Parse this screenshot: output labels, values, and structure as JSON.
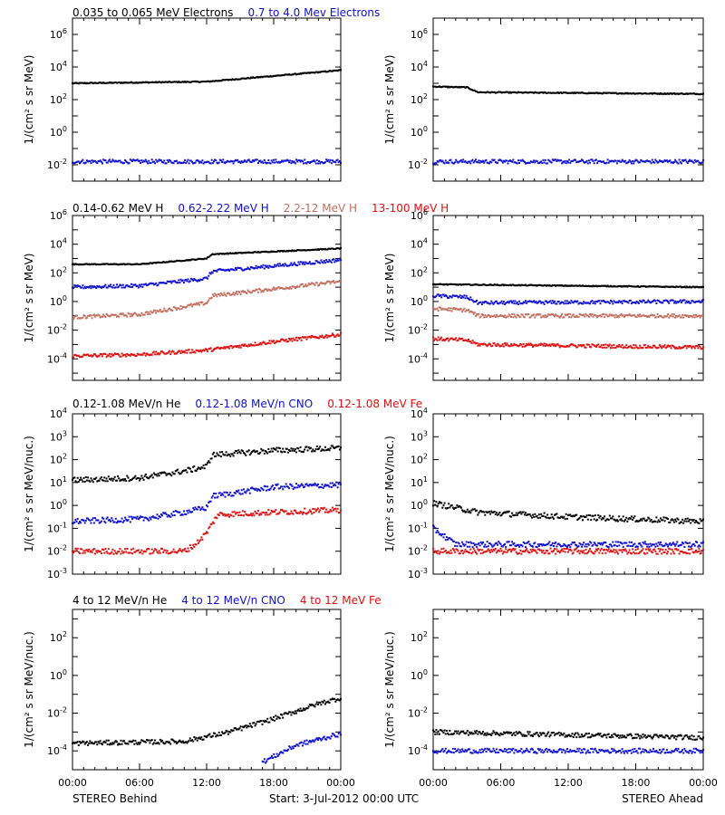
{
  "colors": {
    "black": "#000000",
    "blue": "#1010cc",
    "brown": "#c07060",
    "red": "#dd1010"
  },
  "footer": {
    "left_label": "STEREO Behind",
    "center_label": "Start:  3-Jul-2012 00:00 UTC",
    "right_label": "STEREO Ahead"
  },
  "chart_data": [
    {
      "type": "scatter",
      "row_title": [
        {
          "text": "0.035 to 0.065 MeV Electrons",
          "color": "black"
        },
        {
          "text": "0.7 to 4.0 Mev Electrons",
          "color": "blue"
        }
      ],
      "ylabel": "1/(cm² s sr MeV)",
      "y_scale": "log",
      "ylim_exp": [
        -3,
        7
      ],
      "ytick_exponents": [
        -2,
        0,
        2,
        4,
        6
      ],
      "x_ticks_hours": [
        0,
        6,
        12,
        18,
        24
      ],
      "x_tick_labels": [
        "00:00",
        "06:00",
        "12:00",
        "18:00",
        "00:00"
      ],
      "panels": [
        {
          "spacecraft": "STEREO Behind",
          "series": [
            {
              "color": "black",
              "x": [
                0,
                12,
                24
              ],
              "log10_y": [
                3.0,
                3.1,
                3.8
              ]
            },
            {
              "color": "blue",
              "x": [
                0,
                24
              ],
              "log10_y": [
                -1.8,
                -1.8
              ]
            }
          ]
        },
        {
          "spacecraft": "STEREO Ahead",
          "series": [
            {
              "color": "black",
              "x": [
                0,
                3,
                4,
                24
              ],
              "log10_y": [
                2.8,
                2.75,
                2.45,
                2.35
              ]
            },
            {
              "color": "blue",
              "x": [
                0,
                24
              ],
              "log10_y": [
                -1.8,
                -1.8
              ]
            }
          ]
        }
      ]
    },
    {
      "type": "scatter",
      "row_title": [
        {
          "text": "0.14-0.62 MeV H",
          "color": "black"
        },
        {
          "text": "0.62-2.22 MeV H",
          "color": "blue"
        },
        {
          "text": "2.2-12 MeV H",
          "color": "brown"
        },
        {
          "text": "13-100 MeV H",
          "color": "red"
        }
      ],
      "ylabel": "1/(cm² s sr MeV)",
      "y_scale": "log",
      "ylim_exp": [
        -5.5,
        6
      ],
      "ytick_exponents": [
        -4,
        -2,
        0,
        2,
        4,
        6
      ],
      "x_ticks_hours": [
        0,
        6,
        12,
        18,
        24
      ],
      "x_tick_labels": [
        "00:00",
        "06:00",
        "12:00",
        "18:00",
        "00:00"
      ],
      "panels": [
        {
          "spacecraft": "STEREO Behind",
          "series": [
            {
              "color": "black",
              "x": [
                0,
                6,
                12,
                12.5,
                24
              ],
              "log10_y": [
                2.6,
                2.6,
                3.0,
                3.3,
                3.7
              ]
            },
            {
              "color": "blue",
              "x": [
                0,
                6,
                12,
                12.5,
                24
              ],
              "log10_y": [
                1.0,
                1.1,
                1.6,
                2.1,
                2.9
              ]
            },
            {
              "color": "brown",
              "x": [
                0,
                6,
                12,
                12.5,
                24
              ],
              "log10_y": [
                -1.1,
                -0.9,
                -0.1,
                0.4,
                1.4
              ]
            },
            {
              "color": "red",
              "x": [
                0,
                6,
                12,
                18,
                24
              ],
              "log10_y": [
                -3.8,
                -3.7,
                -3.4,
                -2.8,
                -2.3
              ]
            }
          ]
        },
        {
          "spacecraft": "STEREO Ahead",
          "series": [
            {
              "color": "black",
              "x": [
                0,
                24
              ],
              "log10_y": [
                1.2,
                1.0
              ]
            },
            {
              "color": "blue",
              "x": [
                0,
                3,
                4,
                24
              ],
              "log10_y": [
                0.4,
                0.3,
                -0.1,
                0.0
              ]
            },
            {
              "color": "brown",
              "x": [
                0,
                3,
                4,
                24
              ],
              "log10_y": [
                -0.5,
                -0.6,
                -1.0,
                -1.0
              ]
            },
            {
              "color": "red",
              "x": [
                0,
                3,
                4,
                24
              ],
              "log10_y": [
                -2.6,
                -2.7,
                -3.0,
                -3.2
              ]
            }
          ]
        }
      ]
    },
    {
      "type": "scatter",
      "row_title": [
        {
          "text": "0.12-1.08 MeV/n He",
          "color": "black"
        },
        {
          "text": "0.12-1.08 MeV/n CNO",
          "color": "blue"
        },
        {
          "text": "0.12-1.08 MeV Fe",
          "color": "red"
        }
      ],
      "ylabel": "1/(cm² s sr MeV/nuc.)",
      "y_scale": "log",
      "ylim_exp": [
        -3,
        4
      ],
      "ytick_exponents": [
        -3,
        -2,
        -1,
        0,
        1,
        2,
        3,
        4
      ],
      "x_ticks_hours": [
        0,
        6,
        12,
        18,
        24
      ],
      "x_tick_labels": [
        "00:00",
        "06:00",
        "12:00",
        "18:00",
        "00:00"
      ],
      "panels": [
        {
          "spacecraft": "STEREO Behind",
          "series": [
            {
              "color": "black",
              "x": [
                0,
                6,
                10,
                12,
                12.5,
                18,
                24
              ],
              "log10_y": [
                1.1,
                1.2,
                1.5,
                1.7,
                2.2,
                2.4,
                2.5
              ]
            },
            {
              "color": "blue",
              "x": [
                0,
                6,
                10,
                12,
                12.5,
                18,
                24
              ],
              "log10_y": [
                -0.7,
                -0.6,
                -0.3,
                -0.1,
                0.4,
                0.8,
                0.9
              ]
            },
            {
              "color": "red",
              "x": [
                0,
                10,
                11,
                12,
                13,
                18,
                24
              ],
              "log10_y": [
                -2.0,
                -2.0,
                -1.7,
                -1.2,
                -0.4,
                -0.3,
                -0.2
              ]
            }
          ]
        },
        {
          "spacecraft": "STEREO Ahead",
          "series": [
            {
              "color": "black",
              "x": [
                0,
                4,
                12,
                24
              ],
              "log10_y": [
                0.1,
                -0.3,
                -0.5,
                -0.7
              ]
            },
            {
              "color": "blue",
              "x": [
                0,
                2,
                24
              ],
              "log10_y": [
                -1.0,
                -1.7,
                -1.7
              ]
            },
            {
              "color": "red",
              "x": [
                0,
                24
              ],
              "log10_y": [
                -2.0,
                -2.0
              ]
            }
          ]
        }
      ]
    },
    {
      "type": "scatter",
      "row_title": [
        {
          "text": "4 to 12 MeV/n He",
          "color": "black"
        },
        {
          "text": "4 to 12 MeV/n CNO",
          "color": "blue"
        },
        {
          "text": "4 to 12 MeV Fe",
          "color": "red"
        }
      ],
      "ylabel": "1/(cm² s sr MeV/nuc.)",
      "y_scale": "log",
      "ylim_exp": [
        -5,
        3.5
      ],
      "ytick_exponents": [
        -4,
        -2,
        0,
        2
      ],
      "x_ticks_hours": [
        0,
        6,
        12,
        18,
        24
      ],
      "x_tick_labels": [
        "00:00",
        "06:00",
        "12:00",
        "18:00",
        "00:00"
      ],
      "panels": [
        {
          "spacecraft": "STEREO Behind",
          "series": [
            {
              "color": "black",
              "x": [
                0,
                10,
                14,
                18,
                22,
                24
              ],
              "log10_y": [
                -3.6,
                -3.5,
                -3.0,
                -2.3,
                -1.5,
                -1.2
              ]
            },
            {
              "color": "blue",
              "x": [
                17,
                20,
                24
              ],
              "log10_y": [
                -4.6,
                -3.7,
                -3.1
              ]
            }
          ]
        },
        {
          "spacecraft": "STEREO Ahead",
          "series": [
            {
              "color": "black",
              "x": [
                0,
                24
              ],
              "log10_y": [
                -3.0,
                -3.3
              ]
            },
            {
              "color": "blue",
              "x": [
                0,
                24
              ],
              "log10_y": [
                -4.0,
                -4.0
              ]
            }
          ]
        }
      ]
    }
  ]
}
